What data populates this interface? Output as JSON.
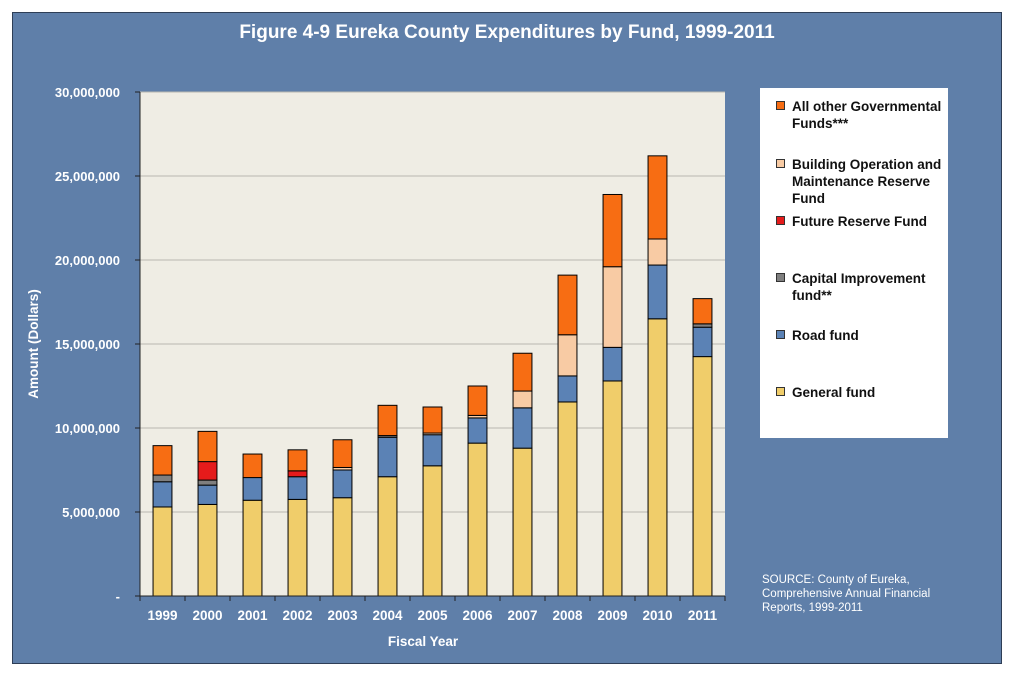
{
  "chart_data": {
    "type": "bar",
    "stacked": true,
    "title": "Figure 4-9 Eureka County Expenditures by Fund, 1999-2011",
    "xlabel": "Fiscal Year",
    "ylabel": "Amount (Dollars)",
    "ylim": [
      0,
      30000000
    ],
    "yticks": [
      0,
      5000000,
      10000000,
      15000000,
      20000000,
      25000000,
      30000000
    ],
    "ytick_labels": [
      "-",
      "5,000,000",
      "10,000,000",
      "15,000,000",
      "20,000,000",
      "25,000,000",
      "30,000,000"
    ],
    "grid": true,
    "legend_position": "right",
    "categories": [
      "1999",
      "2000",
      "2001",
      "2002",
      "2003",
      "2004",
      "2005",
      "2006",
      "2007",
      "2008",
      "2009",
      "2010",
      "2011"
    ],
    "series": [
      {
        "name": "General fund",
        "color": "#f0cd6a",
        "values": [
          5300000,
          5450000,
          5700000,
          5750000,
          5850000,
          7100000,
          7750000,
          9100000,
          8800000,
          11550000,
          12800000,
          16500000,
          14250000
        ]
      },
      {
        "name": "Road fund",
        "color": "#5b82b5",
        "values": [
          1500000,
          1150000,
          1350000,
          1350000,
          1650000,
          2350000,
          1850000,
          1500000,
          2400000,
          1550000,
          2000000,
          3200000,
          1750000
        ]
      },
      {
        "name": "Capital Improvement fund**",
        "color": "#7f7f7f",
        "values": [
          400000,
          300000,
          0,
          0,
          0,
          100000,
          0,
          0,
          0,
          0,
          0,
          0,
          200000
        ]
      },
      {
        "name": "Future Reserve Fund",
        "color": "#e51b1b",
        "values": [
          0,
          1100000,
          0,
          350000,
          0,
          0,
          0,
          0,
          0,
          0,
          0,
          0,
          0
        ]
      },
      {
        "name": "Building Operation and Maintenance Reserve Fund",
        "color": "#f8cba4",
        "values": [
          0,
          0,
          0,
          0,
          150000,
          0,
          100000,
          150000,
          1000000,
          2450000,
          4800000,
          1550000,
          0
        ]
      },
      {
        "name": "All other Governmental Funds***",
        "color": "#f76d13",
        "values": [
          1750000,
          1800000,
          1400000,
          1250000,
          1650000,
          1800000,
          1550000,
          1750000,
          2250000,
          3550000,
          4300000,
          4950000,
          1500000
        ]
      }
    ],
    "legend_order": [
      5,
      4,
      3,
      2,
      1,
      0
    ],
    "source": "SOURCE: County of Eureka, Comprehensive Annual Financial Reports, 1999-2011"
  },
  "legend_labels": {
    "all_other": "All other Governmental Funds***",
    "building": "Building Operation and Maintenance Reserve Fund",
    "future": "Future Reserve Fund",
    "capital": "Capital Improvement fund**",
    "road": "Road fund",
    "general": "General fund"
  }
}
